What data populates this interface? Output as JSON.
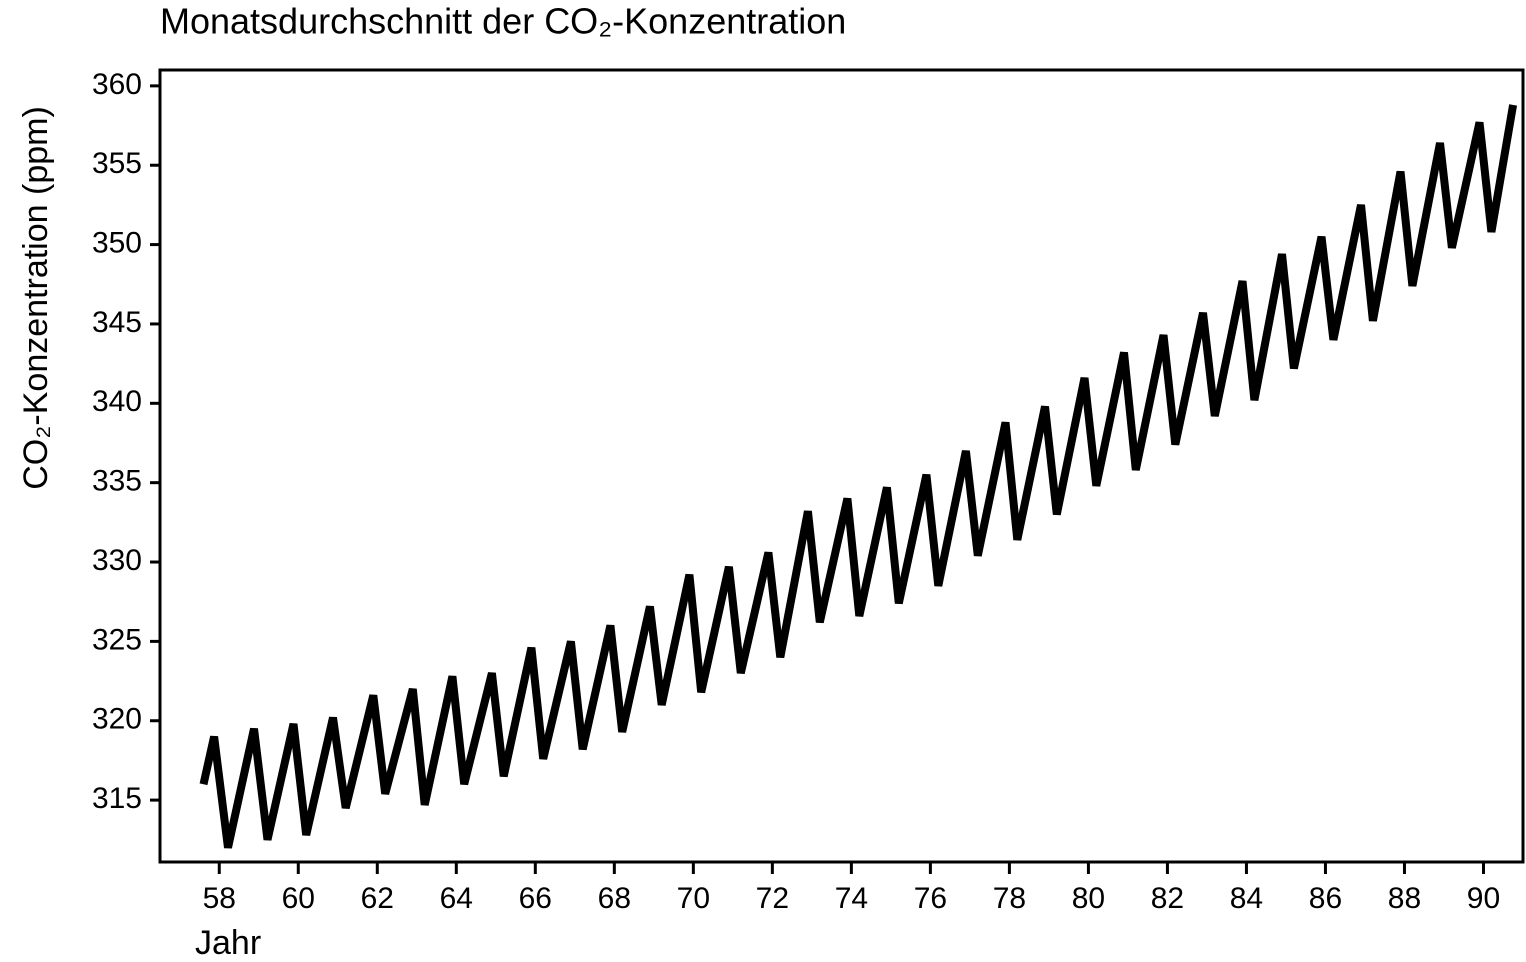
{
  "chart_data": {
    "type": "line",
    "title": "Monatsdurchschnitt der CO₂-Konzentration",
    "x_label": "Jahr",
    "y_label": "CO₂-Konzentration (ppm)",
    "color": "#000000",
    "x": [
      57.6,
      57.87,
      58.22,
      58.88,
      59.22,
      59.88,
      60.2,
      60.88,
      61.2,
      61.9,
      62.2,
      62.9,
      63.2,
      63.9,
      64.2,
      64.9,
      65.2,
      65.9,
      66.2,
      66.9,
      67.2,
      67.9,
      68.2,
      68.9,
      69.2,
      69.9,
      70.2,
      70.9,
      71.2,
      71.9,
      72.2,
      72.9,
      73.2,
      73.9,
      74.2,
      74.9,
      75.2,
      75.9,
      76.2,
      76.9,
      77.2,
      77.9,
      78.2,
      78.9,
      79.2,
      79.9,
      80.2,
      80.9,
      81.2,
      81.9,
      82.2,
      82.9,
      83.2,
      83.9,
      84.2,
      84.9,
      85.2,
      85.9,
      86.2,
      86.9,
      87.2,
      87.9,
      88.2,
      88.9,
      89.2,
      89.9,
      90.2,
      90.75
    ],
    "values": [
      316,
      319,
      312,
      319.5,
      312.5,
      319.8,
      312.8,
      320.2,
      314.5,
      321.6,
      315.4,
      322,
      314.7,
      322.8,
      316,
      323,
      316.5,
      324.6,
      317.6,
      325,
      318.2,
      326,
      319.3,
      327.2,
      321,
      329.2,
      321.8,
      329.7,
      323,
      330.6,
      324,
      333.2,
      326.2,
      334,
      326.6,
      334.7,
      327.4,
      335.5,
      328.5,
      337,
      330.4,
      338.8,
      331.4,
      339.8,
      333,
      341.6,
      334.8,
      343.2,
      335.8,
      344.3,
      337.4,
      345.7,
      339.2,
      347.7,
      340.2,
      349.4,
      342.2,
      350.5,
      344,
      352.5,
      345.2,
      354.6,
      347.4,
      356.4,
      349.8,
      357.7,
      350.8,
      358.8
    ],
    "xlim": [
      56.5,
      91
    ],
    "ylim": [
      311.1,
      361
    ],
    "xticks": [
      58,
      60,
      62,
      64,
      66,
      68,
      70,
      72,
      74,
      76,
      78,
      80,
      82,
      84,
      86,
      88,
      90
    ],
    "yticks": [
      315,
      320,
      325,
      330,
      335,
      340,
      345,
      350,
      355,
      360
    ],
    "grid": false
  }
}
